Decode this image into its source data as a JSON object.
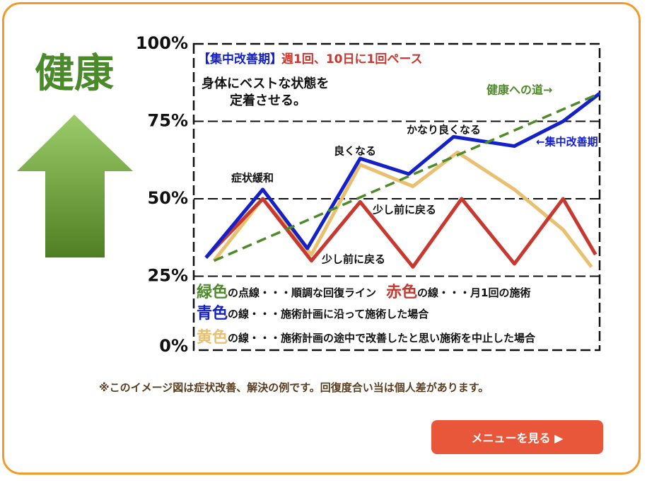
{
  "page": {
    "health": "健康",
    "note": "※このイメージ図は症状改善、解決の例です。回復度合い当は個人差があります。",
    "button": "メニューを見る ▶"
  },
  "chart_data": {
    "type": "line",
    "xlim": [
      0,
      100
    ],
    "ylim": [
      0,
      100
    ],
    "yticks": [
      {
        "value": 100,
        "label": "100%"
      },
      {
        "value": 75,
        "label": "75%"
      },
      {
        "value": 50,
        "label": "50%"
      },
      {
        "value": 25,
        "label": "25%"
      },
      {
        "value": 0,
        "label": "0%"
      }
    ],
    "grid": true,
    "annotations": [
      "【集中改善期】",
      "週1回、10日に1回ペース",
      "身体にベストな状態を",
      "定着させる。",
      "健康への道→",
      "←集中改善期",
      "かなり良くなる",
      "良くなる",
      "症状緩和",
      "少し前に戻る",
      "少し前に戻る"
    ],
    "series": [
      {
        "name": "緑色",
        "label": "の点線・・・順調な回復ライン",
        "color": "#4e8a2a",
        "dashed": true,
        "x": [
          5,
          100
        ],
        "values": [
          30,
          84
        ]
      },
      {
        "name": "赤色",
        "label": "の線・・・月1回の施術",
        "color": "#c8382e",
        "x": [
          3,
          17,
          29,
          41,
          54,
          66,
          79,
          91,
          99
        ],
        "values": [
          31,
          50,
          30,
          49,
          28,
          50,
          29,
          50,
          32
        ]
      },
      {
        "name": "青色",
        "label": "の線・・・施術計画に沿って施術した場合",
        "color": "#1420c8",
        "x": [
          3,
          17,
          28,
          41,
          53,
          64,
          79,
          91,
          100
        ],
        "values": [
          31,
          53,
          34,
          63,
          58,
          70,
          67,
          75,
          84
        ]
      },
      {
        "name": "黄色",
        "label": "の線・・・施術計画の途中で改善したと思い施術を中止した場合",
        "color": "#e8c070",
        "x": [
          5,
          17,
          29,
          41,
          54,
          65,
          79,
          91,
          98
        ],
        "values": [
          30,
          50,
          32,
          61,
          54,
          65,
          53,
          40,
          28
        ]
      }
    ]
  }
}
